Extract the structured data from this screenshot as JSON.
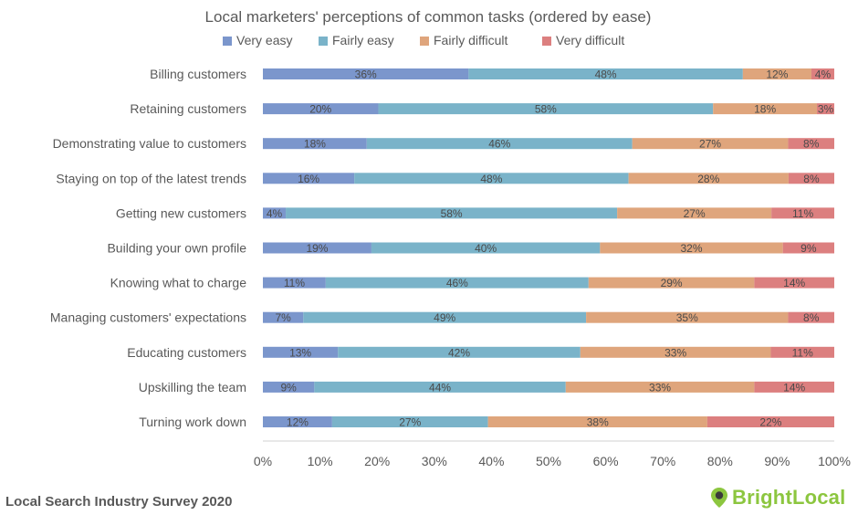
{
  "chart_data": {
    "type": "bar",
    "orientation": "horizontal",
    "stacked": true,
    "title": "Local marketers' perceptions of common tasks (ordered by ease)",
    "categories": [
      "Billing customers",
      "Retaining customers",
      "Demonstrating value to customers",
      "Staying on top of the latest trends",
      "Getting new customers",
      "Building your own profile",
      "Knowing what to charge",
      "Managing customers' expectations",
      "Educating customers",
      "Upskilling the team",
      "Turning work down"
    ],
    "series": [
      {
        "name": "Very easy",
        "color": "#7b96cc",
        "values": [
          36,
          20,
          18,
          16,
          4,
          19,
          11,
          7,
          13,
          9,
          12
        ]
      },
      {
        "name": "Fairly easy",
        "color": "#7ab3c9",
        "values": [
          48,
          58,
          46,
          48,
          58,
          40,
          46,
          49,
          42,
          44,
          27
        ]
      },
      {
        "name": "Fairly difficult",
        "color": "#dfa57c",
        "values": [
          12,
          18,
          27,
          28,
          27,
          32,
          29,
          35,
          33,
          33,
          38
        ]
      },
      {
        "name": "Very difficult",
        "color": "#dc7f7f",
        "values": [
          4,
          3,
          8,
          8,
          11,
          9,
          14,
          8,
          11,
          14,
          22
        ]
      }
    ],
    "xticks": [
      "0%",
      "10%",
      "20%",
      "30%",
      "40%",
      "50%",
      "60%",
      "70%",
      "80%",
      "90%",
      "100%"
    ],
    "xlim": [
      0,
      100
    ],
    "grid": false,
    "legend_position": "top"
  },
  "footer": {
    "source": "Local Search Industry Survey 2020",
    "brand": "BrightLocal"
  },
  "colors": {
    "brand": "#8cc63f",
    "brand_dark": "#3b3b3b"
  },
  "icons": {
    "brand_logo": "map-pin-icon"
  }
}
